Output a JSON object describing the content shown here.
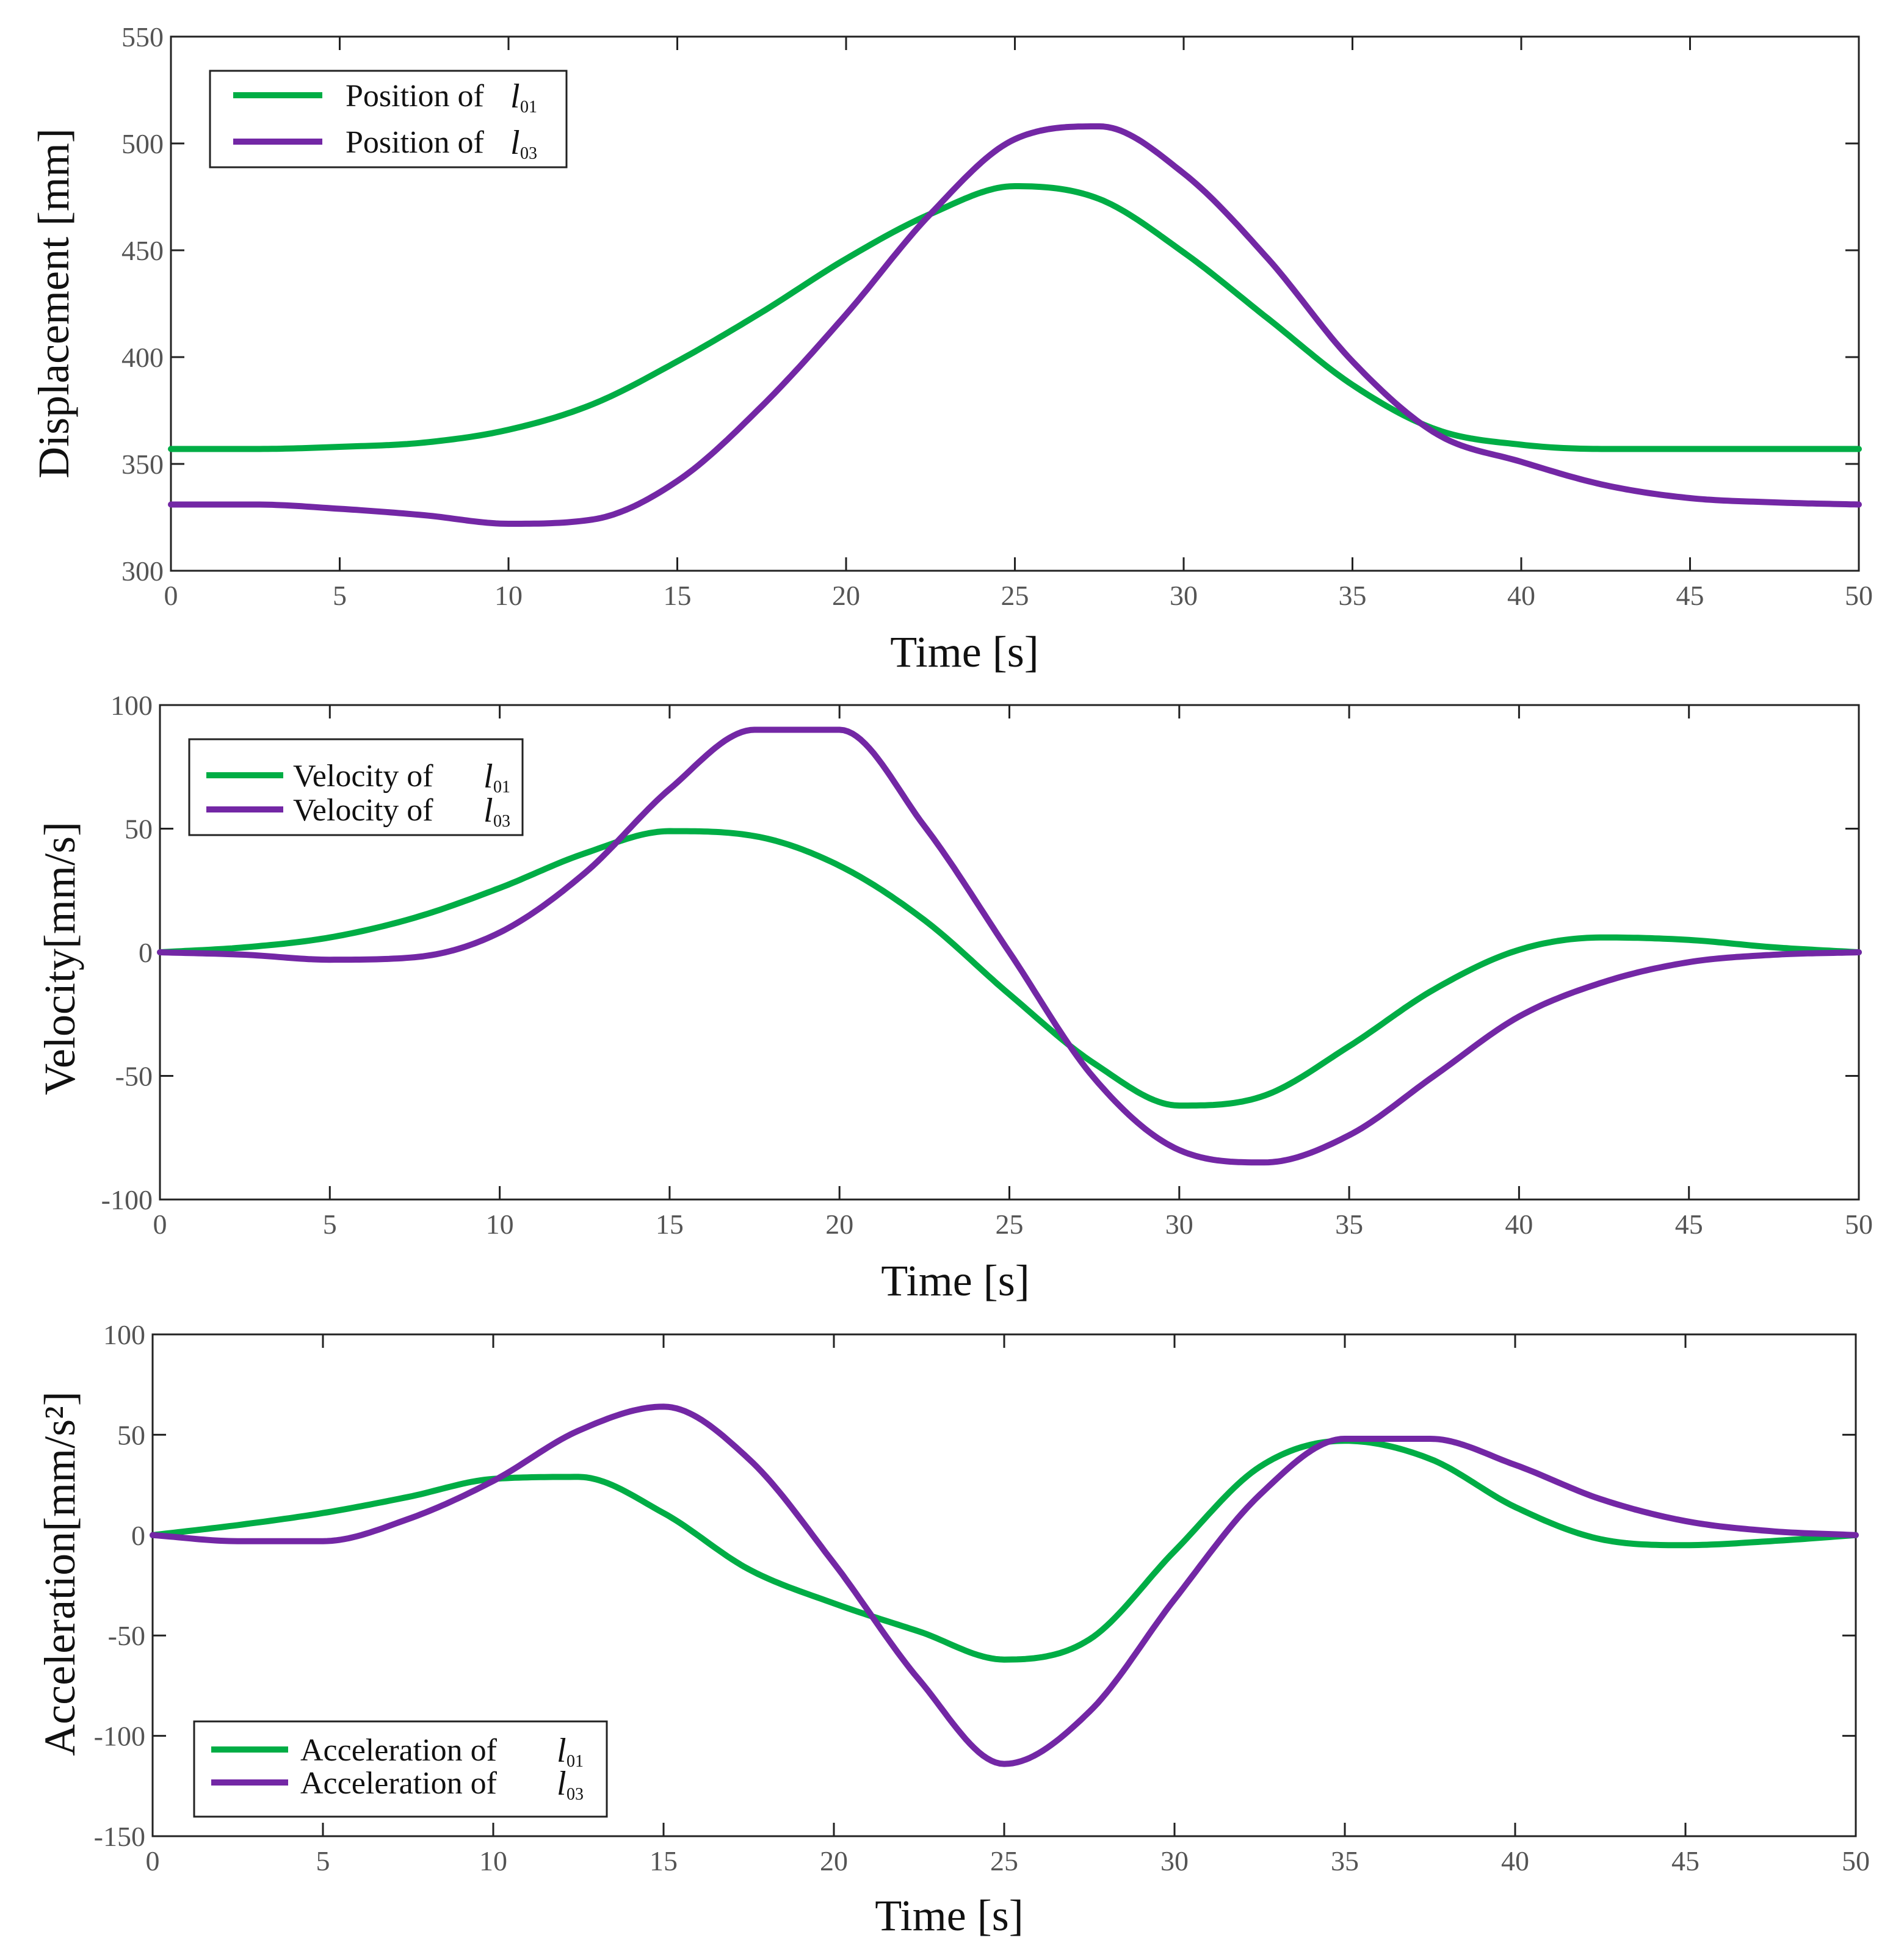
{
  "chart_data": [
    {
      "type": "line",
      "id": "displacement",
      "xlabel": "Time [s]",
      "ylabel": "Displacement [mm]",
      "xlim": [
        0,
        50
      ],
      "ylim": [
        300,
        550
      ],
      "xticks": [
        0,
        5,
        10,
        15,
        20,
        25,
        30,
        35,
        40,
        45,
        50
      ],
      "yticks": [
        300,
        350,
        400,
        450,
        500,
        550
      ],
      "legend_position": "top-left",
      "x": [
        0,
        2.5,
        5,
        7.5,
        10,
        12.5,
        15,
        17.5,
        20,
        22.5,
        25,
        27.5,
        30,
        32.5,
        35,
        37.5,
        40,
        42.5,
        45,
        47.5,
        50
      ],
      "series": [
        {
          "name": "Position of",
          "symbol": "l",
          "subscript": "01",
          "color": "#00ad45",
          "values": [
            357,
            357,
            358,
            360,
            366,
            378,
            398,
            421,
            446,
            467,
            480,
            474,
            449,
            418,
            387,
            366,
            359,
            357,
            357,
            357,
            357
          ]
        },
        {
          "name": "Position of",
          "symbol": "l",
          "subscript": "03",
          "color": "#7327a5",
          "values": [
            331,
            331,
            329,
            326,
            322,
            324,
            342,
            377,
            420,
            467,
            502,
            508,
            486,
            446,
            398,
            364,
            351,
            340,
            334,
            332,
            331
          ]
        }
      ]
    },
    {
      "type": "line",
      "id": "velocity",
      "xlabel": "Time [s]",
      "ylabel": "Velocity[mm/s]",
      "xlim": [
        0,
        50
      ],
      "ylim": [
        -100,
        100
      ],
      "xticks": [
        0,
        5,
        10,
        15,
        20,
        25,
        30,
        35,
        40,
        45,
        50
      ],
      "yticks": [
        -100,
        -50,
        0,
        50,
        100
      ],
      "legend_position": "top-left",
      "x": [
        0,
        2.5,
        5,
        7.5,
        10,
        12.5,
        15,
        17.5,
        20,
        22.5,
        25,
        27.5,
        30,
        32.5,
        35,
        37.5,
        40,
        42.5,
        45,
        47.5,
        50
      ],
      "series": [
        {
          "name": "Velocity of",
          "symbol": "l",
          "subscript": "01",
          "color": "#00ad45",
          "values": [
            0,
            2,
            6,
            14,
            26,
            40,
            49,
            47,
            35,
            13,
            -17,
            -45,
            -62,
            -58,
            -38,
            -15,
            1,
            6,
            5,
            2,
            0
          ]
        },
        {
          "name": "Velocity of",
          "symbol": "l",
          "subscript": "03",
          "color": "#7327a5",
          "values": [
            0,
            -1,
            -3,
            -2,
            8,
            32,
            66,
            90,
            90,
            51,
            0,
            -51,
            -80,
            -85,
            -74,
            -50,
            -26,
            -12,
            -4,
            -1,
            0
          ]
        }
      ]
    },
    {
      "type": "line",
      "id": "acceleration",
      "xlabel": "Time [s]",
      "ylabel": "Acceleration[mm/s²]",
      "xlim": [
        0,
        50
      ],
      "ylim": [
        -150,
        100
      ],
      "xticks": [
        0,
        5,
        10,
        15,
        20,
        25,
        30,
        35,
        40,
        45,
        50
      ],
      "yticks": [
        -150,
        -100,
        -50,
        0,
        50,
        100
      ],
      "legend_position": "bottom-left",
      "x": [
        0,
        2.5,
        5,
        7.5,
        10,
        12.5,
        15,
        17.5,
        20,
        22.5,
        25,
        27.5,
        30,
        32.5,
        35,
        37.5,
        40,
        42.5,
        45,
        47.5,
        50
      ],
      "series": [
        {
          "name": "Acceleration of",
          "symbol": "l",
          "subscript": "01",
          "color": "#00ad45",
          "values": [
            0,
            5,
            11,
            19,
            28,
            29,
            11,
            -17,
            -34,
            -48,
            -62,
            -52,
            -8,
            34,
            47,
            38,
            14,
            -2,
            -5,
            -3,
            0
          ]
        },
        {
          "name": "Acceleration of",
          "symbol": "l",
          "subscript": "03",
          "color": "#7327a5",
          "values": [
            0,
            -3,
            -3,
            8,
            27,
            52,
            64,
            38,
            -14,
            -72,
            -114,
            -88,
            -32,
            20,
            48,
            48,
            35,
            18,
            7,
            2,
            0
          ]
        }
      ]
    }
  ]
}
